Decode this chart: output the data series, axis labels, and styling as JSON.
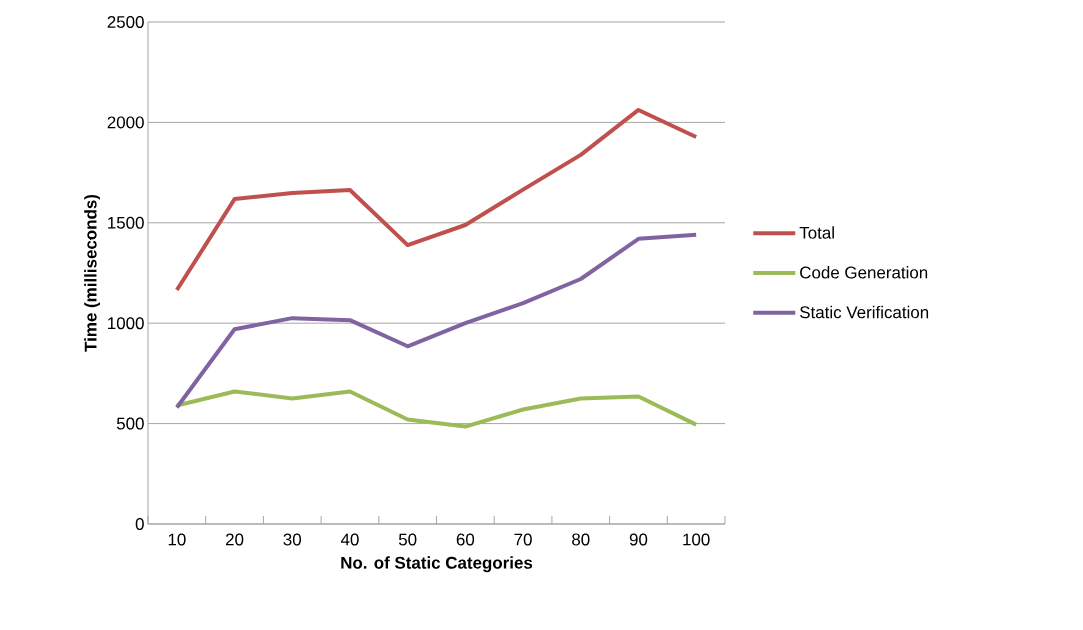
{
  "chart_data": {
    "type": "line",
    "xlabel": "No. of Static Categories",
    "ylabel": "Time (milliseconds)",
    "categories": [
      "10",
      "20",
      "30",
      "40",
      "50",
      "60",
      "70",
      "80",
      "90",
      "100"
    ],
    "series": [
      {
        "name": "Total",
        "color": "#c0504d",
        "values": [
          1165,
          1618,
          1648,
          1663,
          1389,
          1489,
          1665,
          1838,
          2062,
          1927
        ]
      },
      {
        "name": "Code Generation",
        "color": "#9bbb59",
        "values": [
          590,
          660,
          625,
          660,
          520,
          485,
          570,
          625,
          635,
          495
        ]
      },
      {
        "name": "Static Verification",
        "color": "#8064a2",
        "values": [
          580,
          970,
          1025,
          1015,
          885,
          1000,
          1100,
          1220,
          1420,
          1440
        ]
      }
    ],
    "ylim": [
      0,
      2500
    ],
    "yticks": [
      0,
      500,
      1000,
      1500,
      2000,
      2500
    ],
    "grid": "y",
    "legend": "right",
    "marker": "none",
    "line_style": "solid"
  }
}
